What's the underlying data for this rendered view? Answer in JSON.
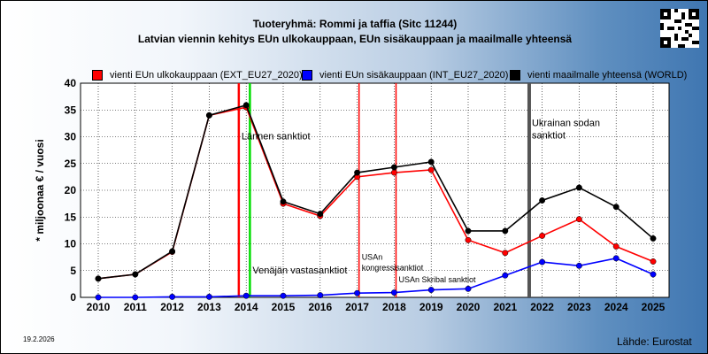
{
  "header": {
    "title": "Tuoteryhmä: Rommi ja taffia (Sitc 11244)",
    "subtitle": "Latvian viennin kehitys EUn ulkokauppaan, EUn sisäkauppaan ja maailmalle yhteensä"
  },
  "footer": {
    "date": "19.2.2026",
    "source": "Lähde: Eurostat"
  },
  "chart_data": {
    "type": "line",
    "ylabel": "* miljoonaa € / vuosi",
    "xlabel": "",
    "ylim": [
      0,
      40
    ],
    "yticks": [
      0,
      5,
      10,
      15,
      20,
      25,
      30,
      35,
      40
    ],
    "categories": [
      "2010",
      "2011",
      "2012",
      "2013",
      "2014",
      "2015",
      "2016",
      "2017",
      "2018",
      "2019",
      "2020",
      "2021",
      "2022",
      "2023",
      "2024",
      "2025"
    ],
    "grid": true,
    "legend_position": "top",
    "series": [
      {
        "name": "vienti EUn ulkokauppaan (EXT_EU27_2020)",
        "color": "#ff0000",
        "values": [
          3.5,
          4.3,
          8.5,
          34.0,
          35.5,
          17.5,
          15.2,
          22.5,
          23.3,
          23.8,
          10.7,
          8.3,
          11.5,
          14.6,
          9.5,
          6.7
        ]
      },
      {
        "name": "vienti EUn sisäkauppaan (INT_EU27_2020)",
        "color": "#0000ff",
        "values": [
          0.0,
          0.0,
          0.1,
          0.1,
          0.3,
          0.3,
          0.4,
          0.8,
          0.9,
          1.4,
          1.6,
          4.1,
          6.6,
          5.9,
          7.3,
          4.3
        ]
      },
      {
        "name": "vienti maailmalle yhteensä (WORLD)",
        "color": "#000000",
        "values": [
          3.5,
          4.3,
          8.6,
          34.0,
          35.9,
          17.9,
          15.6,
          23.3,
          24.3,
          25.3,
          12.4,
          12.4,
          18.1,
          20.5,
          16.9,
          11.0
        ]
      }
    ],
    "annotations": [
      {
        "text": "Lännen sanktiot",
        "x": 2013.8,
        "color": "#ff0000",
        "label_y": 29.5
      },
      {
        "text": "Venäjän vastasanktiot",
        "x": 2014.1,
        "color": "#00dd00",
        "label_y": 4.5
      },
      {
        "text": "USAn\nkongressisanktiot",
        "x": 2017.05,
        "color": "#ff0000",
        "label_y": 7.0
      },
      {
        "text": "USAn Skribal sanktiot",
        "x": 2018.05,
        "color": "#ff0000",
        "label_y": 2.8
      },
      {
        "text": "Ukrainan sodan\nsanktiot",
        "x": 2021.65,
        "color": "#555555",
        "label_y": 32.0
      }
    ]
  }
}
